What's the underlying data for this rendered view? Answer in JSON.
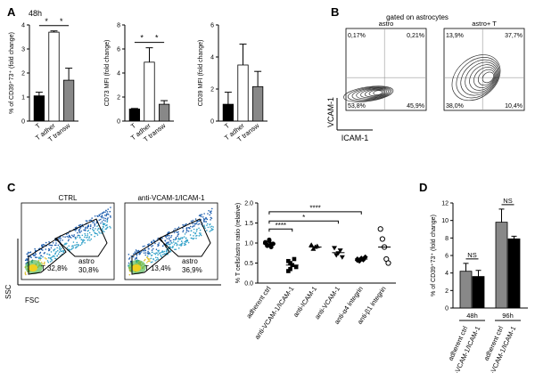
{
  "panels": {
    "A": {
      "label": "A",
      "time": "48h",
      "charts": [
        {
          "type": "bar",
          "ylabel": "% of CD39⁺73⁺ (fold change)",
          "categories": [
            "T",
            "T adher",
            "T transw"
          ],
          "values": [
            1.05,
            3.7,
            1.7
          ],
          "errors": [
            0.15,
            0.05,
            0.5
          ],
          "colors": [
            "#000000",
            "#ffffff",
            "#888888"
          ],
          "ylim": [
            0,
            4
          ],
          "ticks": [
            0,
            1,
            2,
            3,
            4
          ],
          "sig": [
            {
              "from": 0,
              "to": 1,
              "text": "*"
            },
            {
              "from": 1,
              "to": 2,
              "text": "*"
            }
          ]
        },
        {
          "type": "bar",
          "ylabel": "CD73 MFI (fold change)",
          "categories": [
            "T",
            "T adher",
            "T transw"
          ],
          "values": [
            1.0,
            4.9,
            1.4
          ],
          "errors": [
            0.05,
            1.2,
            0.3
          ],
          "colors": [
            "#000000",
            "#ffffff",
            "#888888"
          ],
          "ylim": [
            0,
            8
          ],
          "ticks": [
            0,
            2,
            4,
            6,
            8
          ],
          "sig": [
            {
              "from": 0,
              "to": 1,
              "text": "*"
            },
            {
              "from": 1,
              "to": 2,
              "text": "*"
            }
          ]
        },
        {
          "type": "bar",
          "ylabel": "CD39 MFI (fold change)",
          "categories": [
            "T",
            "T adher",
            "T transw"
          ],
          "values": [
            1.05,
            3.5,
            2.15
          ],
          "errors": [
            0.75,
            1.3,
            0.95
          ],
          "colors": [
            "#000000",
            "#ffffff",
            "#888888"
          ],
          "ylim": [
            0,
            6
          ],
          "ticks": [
            0,
            2,
            4,
            6
          ],
          "sig": []
        }
      ]
    },
    "B": {
      "label": "B",
      "header": "gated on astrocytes",
      "ylabel": "VCAM-1",
      "xlabel": "ICAM-1",
      "plots": [
        {
          "title": "astro",
          "q": [
            "0,17%",
            "0,21%",
            "53,8%",
            "45,9%"
          ]
        },
        {
          "title": "astro+ T",
          "q": [
            "13,9%",
            "37,7%",
            "38,0%",
            "10,4%"
          ]
        }
      ]
    },
    "C": {
      "label": "C",
      "flow_ylabel": "SSC",
      "flow_xlabel": "FSC",
      "flow": [
        {
          "title": "CTRL",
          "astro": "astro",
          "astro_pct": "30,8%",
          "t_label": "T 32,8%"
        },
        {
          "title": "anti-VCAM-1/ICAM-1",
          "astro": "astro",
          "astro_pct": "36,9%",
          "t_label": "T 13,4%"
        }
      ],
      "dot": {
        "type": "scatter",
        "ylabel": "% T cells/astro ratio (relative)",
        "ylim": [
          0,
          2.0
        ],
        "ticks": [
          "0.0",
          "0.5",
          "1.0",
          "1.5",
          "2.0"
        ],
        "categories": [
          "adherent ctrl",
          "anti-VCAM-1/ICAM-1",
          "anti-ICAM-1",
          "anti-VCAM-1",
          "anti-α4 integrin",
          "anti-β1 integrin"
        ],
        "points": [
          [
            1.0,
            0.95,
            1.05,
            0.9,
            0.98,
            1.02,
            0.93,
            1.08,
            0.97
          ],
          [
            0.55,
            0.35,
            0.45,
            0.6,
            0.4,
            0.3,
            0.5
          ],
          [
            0.95,
            0.85,
            0.9,
            0.92
          ],
          [
            0.88,
            0.7,
            0.75,
            0.82,
            0.65
          ],
          [
            0.6,
            0.55,
            0.62,
            0.58,
            0.65,
            0.57
          ],
          [
            1.35,
            1.1,
            0.9,
            0.6,
            0.5
          ]
        ],
        "means": [
          0.98,
          0.45,
          0.9,
          0.76,
          0.6,
          0.9
        ],
        "sig": [
          {
            "from": 0,
            "to": 1,
            "text": "****"
          },
          {
            "from": 0,
            "to": 3,
            "text": "*"
          },
          {
            "from": 0,
            "to": 4,
            "text": "****"
          }
        ]
      }
    },
    "D": {
      "label": "D",
      "type": "bar",
      "ylabel": "% of CD39⁺73⁺ (fold change)",
      "ylim": [
        0,
        12
      ],
      "ticks": [
        0,
        2,
        4,
        6,
        8,
        10,
        12
      ],
      "groups": [
        {
          "name": "48h",
          "values": [
            4.2,
            3.6
          ],
          "errors": [
            0.9,
            0.7
          ]
        },
        {
          "name": "96h",
          "values": [
            9.8,
            7.9
          ],
          "errors": [
            1.5,
            0.3
          ]
        }
      ],
      "categories": [
        "adherent ctrl",
        "anti-VCAM-1/ICAM-1",
        "adherent ctrl",
        "anti-VCAM-1/ICAM-1"
      ],
      "colors": [
        "#888888",
        "#000000"
      ],
      "sig": [
        "NS",
        "NS"
      ]
    }
  }
}
